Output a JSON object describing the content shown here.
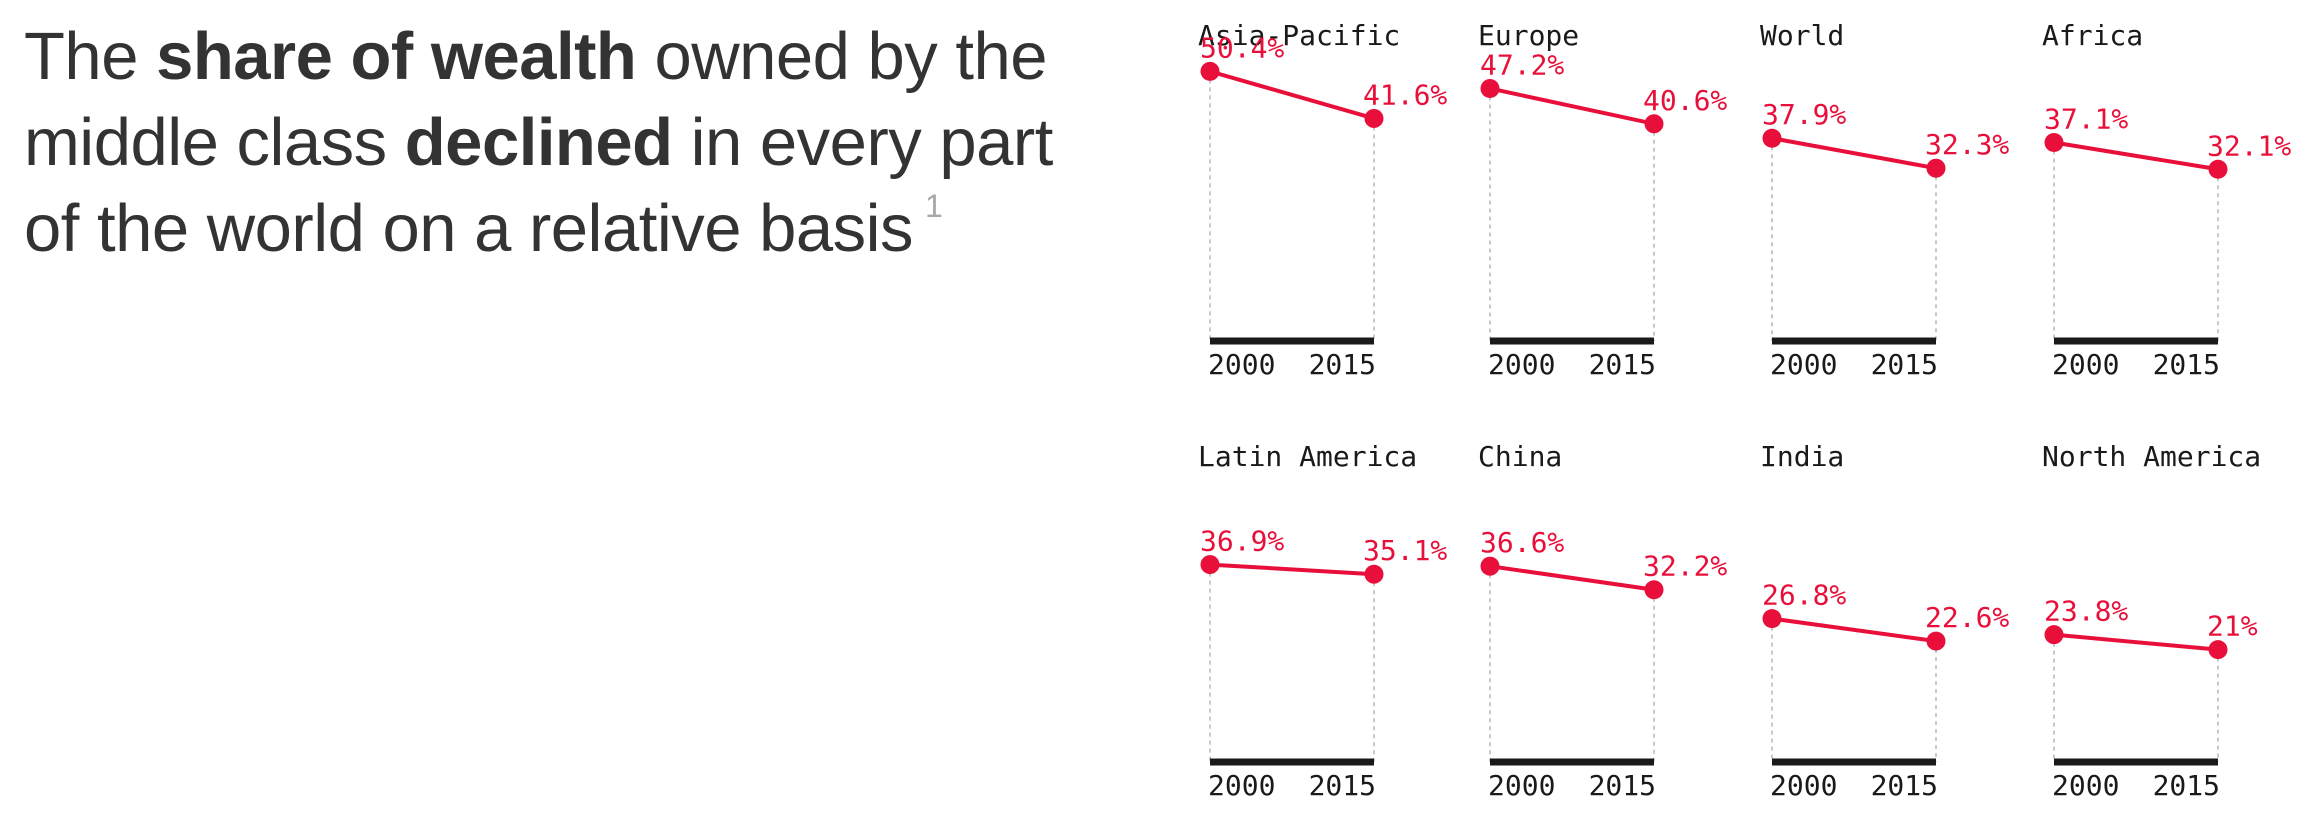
{
  "headline": {
    "part1": "The ",
    "bold1": "share of wealth",
    "part2": " owned by the middle class ",
    "bold2": "declined",
    "part3": " in every part of the world on a relative basis",
    "footnote": "1"
  },
  "colors": {
    "accent": "#e8103a",
    "text": "#333333",
    "axis": "#1a1a1a",
    "guide": "#c8c8c8",
    "footnote": "#a8a8a8"
  },
  "chart_data": {
    "type": "line",
    "x": [
      "2000",
      "2015"
    ],
    "ylim": [
      0,
      60
    ],
    "grid": false,
    "panels": [
      {
        "title": "Asia-Pacific",
        "values": [
          50.4,
          41.6
        ],
        "labels": [
          "50.4%",
          "41.6%"
        ]
      },
      {
        "title": "Europe",
        "values": [
          47.2,
          40.6
        ],
        "labels": [
          "47.2%",
          "40.6%"
        ]
      },
      {
        "title": "World",
        "values": [
          37.9,
          32.3
        ],
        "labels": [
          "37.9%",
          "32.3%"
        ]
      },
      {
        "title": "Africa",
        "values": [
          37.1,
          32.1
        ],
        "labels": [
          "37.1%",
          "32.1%"
        ]
      },
      {
        "title": "Latin America",
        "values": [
          36.9,
          35.1
        ],
        "labels": [
          "36.9%",
          "35.1%"
        ]
      },
      {
        "title": "China",
        "values": [
          36.6,
          32.2
        ],
        "labels": [
          "36.6%",
          "32.2%"
        ]
      },
      {
        "title": "India",
        "values": [
          26.8,
          22.6
        ],
        "labels": [
          "26.8%",
          "22.6%"
        ]
      },
      {
        "title": "North America",
        "values": [
          23.8,
          21.0
        ],
        "labels": [
          "23.8%",
          "21%"
        ]
      }
    ]
  }
}
